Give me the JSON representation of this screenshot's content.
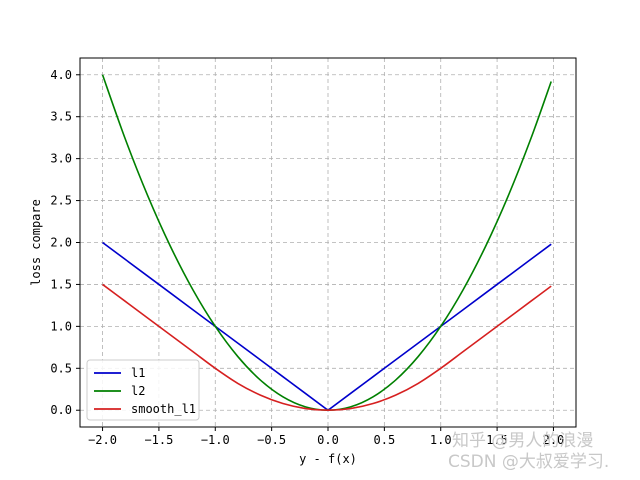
{
  "chart_data": {
    "type": "line",
    "title": "",
    "xlabel": "y - f(x)",
    "ylabel": "loss compare",
    "xlim": [
      -2.2,
      2.2
    ],
    "ylim": [
      -0.2,
      4.2
    ],
    "x_ticks": [
      -2.0,
      -1.5,
      -1.0,
      -0.5,
      0.0,
      0.5,
      1.0,
      1.5,
      2.0
    ],
    "x_tick_labels": [
      "−2.0",
      "−1.5",
      "−1.0",
      "−0.5",
      "0.0",
      "0.5",
      "1.0",
      "1.5",
      "2.0"
    ],
    "y_ticks": [
      0.0,
      0.5,
      1.0,
      1.5,
      2.0,
      2.5,
      3.0,
      3.5,
      4.0
    ],
    "y_tick_labels": [
      "0.0",
      "0.5",
      "1.0",
      "1.5",
      "2.0",
      "2.5",
      "3.0",
      "3.5",
      "4.0"
    ],
    "grid": true,
    "legend_position": "lower-left",
    "x": [
      -2.0,
      -1.8,
      -1.6,
      -1.4,
      -1.2,
      -1.0,
      -0.8,
      -0.6,
      -0.4,
      -0.2,
      0.0,
      0.2,
      0.4,
      0.6,
      0.8,
      1.0,
      1.2,
      1.4,
      1.6,
      1.8,
      1.98
    ],
    "series": [
      {
        "name": "l1",
        "color": "#0000cc",
        "values": [
          2.0,
          1.8,
          1.6,
          1.4,
          1.2,
          1.0,
          0.8,
          0.6,
          0.4,
          0.2,
          0.0,
          0.2,
          0.4,
          0.6,
          0.8,
          1.0,
          1.2,
          1.4,
          1.6,
          1.8,
          1.98
        ]
      },
      {
        "name": "l2",
        "color": "#008000",
        "values": [
          4.0,
          3.24,
          2.56,
          1.96,
          1.44,
          1.0,
          0.64,
          0.36,
          0.16,
          0.04,
          0.0,
          0.04,
          0.16,
          0.36,
          0.64,
          1.0,
          1.44,
          1.96,
          2.56,
          3.24,
          3.92
        ]
      },
      {
        "name": "smooth_l1",
        "color": "#d62020",
        "values": [
          1.5,
          1.3,
          1.1,
          0.9,
          0.7,
          0.5,
          0.32,
          0.18,
          0.08,
          0.02,
          0.0,
          0.02,
          0.08,
          0.18,
          0.32,
          0.5,
          0.7,
          0.9,
          1.1,
          1.3,
          1.48
        ]
      }
    ]
  },
  "watermark": {
    "line1": "知乎 @男人的浪漫",
    "line2": "CSDN @大叔爱学习."
  },
  "colors": {
    "grid": "#b0b0b0",
    "axis": "#000000",
    "watermark": "#c8c8c8"
  }
}
